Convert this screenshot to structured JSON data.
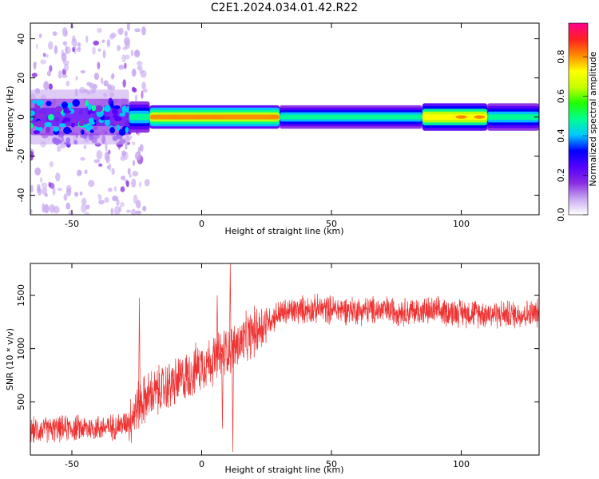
{
  "title": "C2E1.2024.034.01.42.R22",
  "colors": {
    "snr_line": "#ee3333",
    "colormap": [
      "#ffffff",
      "#c8a8f0",
      "#8a2be2",
      "#5500ff",
      "#0000ff",
      "#00c8ff",
      "#00ff90",
      "#20ff00",
      "#c8ff00",
      "#ffff00",
      "#ff8800",
      "#ff2020",
      "#ff0090"
    ]
  },
  "chart_data": [
    {
      "type": "heatmap",
      "xlabel": "Height of straight line (km)",
      "ylabel": "Frequency (Hz)",
      "xlim": [
        -66,
        130
      ],
      "ylim": [
        -50,
        48
      ],
      "xticks": [
        -50,
        0,
        50,
        100
      ],
      "yticks": [
        -40,
        -20,
        0,
        20,
        40
      ],
      "colorbar": {
        "label": "Normalized spectral amplitude",
        "range": [
          0.0,
          0.97
        ],
        "ticks": [
          0.0,
          0.2,
          0.4,
          0.6,
          0.8
        ]
      },
      "band": {
        "center_hz": 0,
        "segments": [
          {
            "x_start": -66,
            "x_end": -28,
            "amplitude": 0.25,
            "width_hz": 14,
            "scattered": true
          },
          {
            "x_start": -28,
            "x_end": -20,
            "amplitude": 0.55,
            "width_hz": 8
          },
          {
            "x_start": -20,
            "x_end": 30,
            "amplitude": 0.85,
            "width_hz": 6
          },
          {
            "x_start": 30,
            "x_end": 85,
            "amplitude": 0.55,
            "width_hz": 6
          },
          {
            "x_start": 85,
            "x_end": 110,
            "amplitude": 0.8,
            "width_hz": 7
          },
          {
            "x_start": 110,
            "x_end": 130,
            "amplitude": 0.55,
            "width_hz": 7
          }
        ],
        "peaks": [
          {
            "x": -10,
            "amplitude": 0.85
          },
          {
            "x": 0,
            "amplitude": 0.85
          },
          {
            "x": 5,
            "amplitude": 0.85
          },
          {
            "x": 28,
            "amplitude": 0.85
          },
          {
            "x": 92,
            "amplitude": 0.75
          },
          {
            "x": 100,
            "amplitude": 0.85
          },
          {
            "x": 107,
            "amplitude": 0.85
          }
        ]
      }
    },
    {
      "type": "line",
      "xlabel": "Height of straight line (km)",
      "ylabel": "SNR (10 * v/v)",
      "xlim": [
        -66,
        130
      ],
      "ylim": [
        0,
        1800
      ],
      "xticks": [
        -50,
        0,
        50,
        100
      ],
      "yticks": [
        500,
        1000,
        1500
      ],
      "series": [
        {
          "color": "#ee3333",
          "trend_x": [
            -66,
            -50,
            -35,
            -30,
            -27,
            -25,
            -22,
            -20,
            -15,
            -10,
            -5,
            0,
            5,
            8,
            10,
            12,
            15,
            20,
            25,
            30,
            40,
            50,
            60,
            70,
            80,
            90,
            100,
            110,
            120,
            130
          ],
          "trend_y": [
            230,
            250,
            260,
            290,
            350,
            450,
            520,
            560,
            620,
            680,
            750,
            850,
            900,
            950,
            1000,
            1000,
            1050,
            1150,
            1250,
            1330,
            1370,
            1370,
            1360,
            1360,
            1350,
            1350,
            1340,
            1330,
            1320,
            1330
          ],
          "spikes": [
            {
              "x": -24,
              "y": 1480
            },
            {
              "x": 6,
              "y": 1500
            },
            {
              "x": 11,
              "y": 1800
            },
            {
              "x": 12,
              "y": 30
            },
            {
              "x": 8,
              "y": 250
            }
          ]
        }
      ]
    }
  ]
}
